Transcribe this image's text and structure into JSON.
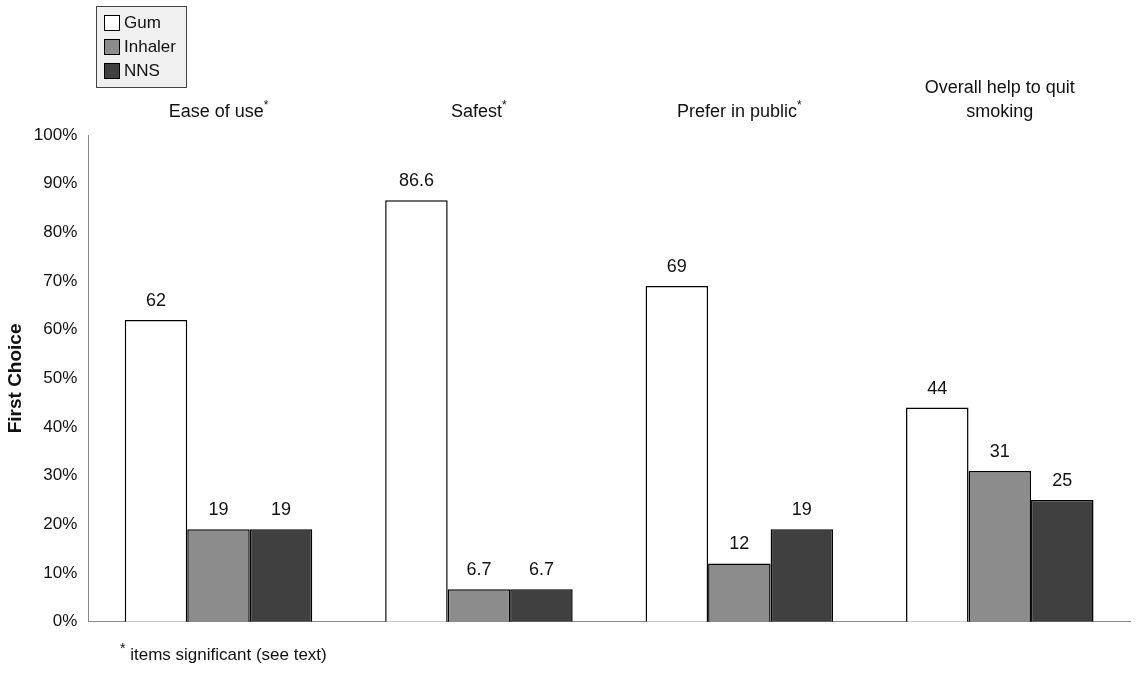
{
  "chart_data": {
    "type": "bar",
    "categories": [
      "Ease of use$^{*}$",
      "Safest$^{*}$",
      "Prefer in public$^{*}$",
      "Overall help to quit smoking"
    ],
    "series": [
      {
        "name": "Gum",
        "color": "#ffffff",
        "values": [
          62,
          86.6,
          69,
          44
        ]
      },
      {
        "name": "Inhaler",
        "color": "#8c8c8c",
        "values": [
          19,
          6.7,
          12,
          31
        ]
      },
      {
        "name": "NNS",
        "color": "#404040",
        "values": [
          19,
          6.7,
          19,
          25
        ]
      }
    ],
    "ylabel": "First Choice",
    "ylim": [
      0,
      100
    ],
    "yticks": [
      {
        "value": 0,
        "label": "0%"
      },
      {
        "value": 10,
        "label": "10%"
      },
      {
        "value": 20,
        "label": "20%"
      },
      {
        "value": 30,
        "label": "30%"
      },
      {
        "value": 40,
        "label": "40%"
      },
      {
        "value": 50,
        "label": "50%"
      },
      {
        "value": 60,
        "label": "60%"
      },
      {
        "value": 70,
        "label": "70%"
      },
      {
        "value": 80,
        "label": "80%"
      },
      {
        "value": 90,
        "label": "90%"
      },
      {
        "value": 100,
        "label": "100%"
      }
    ],
    "grid": false,
    "legend": "top left",
    "data_labels": true,
    "annotations": [
      "$^{*}$ items significant (see text)"
    ]
  }
}
